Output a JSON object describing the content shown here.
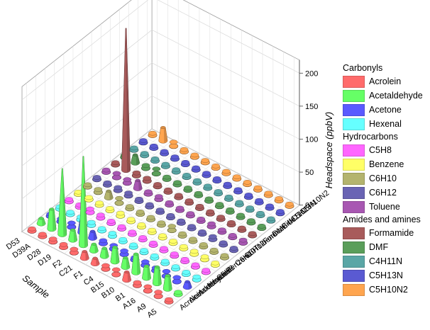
{
  "chart_data": {
    "type": "bar3d",
    "zlabel": "Headspace (ppbV)",
    "xlabel": "Sample",
    "ylabel": "",
    "zlim": [
      0,
      220
    ],
    "zticks": [
      "0",
      "50",
      "100",
      "150",
      "200"
    ],
    "samples": [
      "A5",
      "A9",
      "A16",
      "B1",
      "B10",
      "B15",
      "C4",
      "F1",
      "C21",
      "F2",
      "D19",
      "D28",
      "D39A",
      "D53"
    ],
    "compounds": [
      "Acrolein",
      "Acetaldehyde",
      "Acetone",
      "Hexenal",
      "C5H8",
      "Benzene",
      "C6H10",
      "C6H12",
      "Toluene",
      "Formamide",
      "DMF",
      "C4H11N",
      "C5H13N",
      "C5H10N2"
    ],
    "compound_tick_labels": [
      "Acrolein",
      "Acetaldehyde",
      "Acetone",
      "Hexenal",
      "C5H8",
      "Benzene",
      "C6H10",
      "C6H12",
      "Toluene",
      "Formamide",
      "DMF",
      "C4H11N",
      "C5H13N",
      "C5H10N2"
    ],
    "colors": [
      "#ff6b6b",
      "#66ff66",
      "#5a5aff",
      "#66ffff",
      "#ff66ff",
      "#ffff66",
      "#b4b46e",
      "#6a64b4",
      "#a857b2",
      "#a85b5b",
      "#5a9e5a",
      "#5aa6a6",
      "#5a5ad2",
      "#ffa54f"
    ],
    "values": [
      [
        2,
        2,
        8,
        3,
        2,
        2,
        2,
        2,
        3,
        2,
        2,
        2,
        2,
        2
      ],
      [
        5,
        20,
        5,
        2,
        2,
        3,
        2,
        2,
        2,
        2,
        2,
        2,
        2,
        2
      ],
      [
        5,
        25,
        6,
        2,
        2,
        3,
        2,
        3,
        2,
        2,
        2,
        2,
        2,
        2
      ],
      [
        3,
        18,
        3,
        2,
        2,
        2,
        2,
        2,
        3,
        2,
        2,
        2,
        2,
        2
      ],
      [
        12,
        28,
        4,
        2,
        2,
        2,
        2,
        2,
        2,
        2,
        2,
        2,
        2,
        2
      ],
      [
        6,
        14,
        2,
        2,
        2,
        2,
        5,
        2,
        2,
        2,
        2,
        2,
        2,
        2
      ],
      [
        4,
        22,
        4,
        2,
        2,
        2,
        2,
        2,
        2,
        2,
        2,
        2,
        2,
        2
      ],
      [
        8,
        12,
        4,
        2,
        2,
        2,
        2,
        2,
        2,
        2,
        2,
        2,
        2,
        2
      ],
      [
        10,
        10,
        3,
        3,
        2,
        2,
        2,
        2,
        3,
        2,
        2,
        2,
        2,
        2
      ],
      [
        4,
        135,
        10,
        2,
        2,
        3,
        2,
        2,
        2,
        2,
        2,
        2,
        2,
        2
      ],
      [
        3,
        15,
        18,
        3,
        3,
        2,
        6,
        3,
        12,
        3,
        6,
        2,
        2,
        2
      ],
      [
        3,
        100,
        5,
        3,
        4,
        2,
        10,
        3,
        4,
        3,
        3,
        2,
        2,
        5
      ],
      [
        2,
        30,
        3,
        2,
        2,
        2,
        3,
        2,
        5,
        215,
        12,
        2,
        2,
        20
      ],
      [
        2,
        8,
        2,
        2,
        2,
        2,
        2,
        2,
        2,
        2,
        2,
        2,
        2,
        2
      ]
    ],
    "legend": [
      {
        "group": "Carbonyls",
        "items": [
          {
            "label": "Acrolein",
            "color": "#ff6b6b"
          },
          {
            "label": "Acetaldehyde",
            "color": "#66ff66"
          },
          {
            "label": "Acetone",
            "color": "#5a5aff"
          },
          {
            "label": "Hexenal",
            "color": "#66ffff"
          }
        ]
      },
      {
        "group": "Hydrocarbons",
        "items": [
          {
            "label": "C5H8",
            "color": "#ff66ff"
          },
          {
            "label": "Benzene",
            "color": "#ffff66"
          },
          {
            "label": "C6H10",
            "color": "#b4b46e"
          },
          {
            "label": "C6H12",
            "color": "#6a64b4"
          },
          {
            "label": "Toluene",
            "color": "#a857b2"
          }
        ]
      },
      {
        "group": "Amides and amines",
        "items": [
          {
            "label": "Formamide",
            "color": "#a85b5b"
          },
          {
            "label": "DMF",
            "color": "#5a9e5a"
          },
          {
            "label": "C4H11N",
            "color": "#5aa6a6"
          },
          {
            "label": "C5H13N",
            "color": "#5a5ad2"
          },
          {
            "label": "C5H10N2",
            "color": "#ffa54f"
          }
        ]
      }
    ],
    "legend_position": "right",
    "grid": true
  }
}
